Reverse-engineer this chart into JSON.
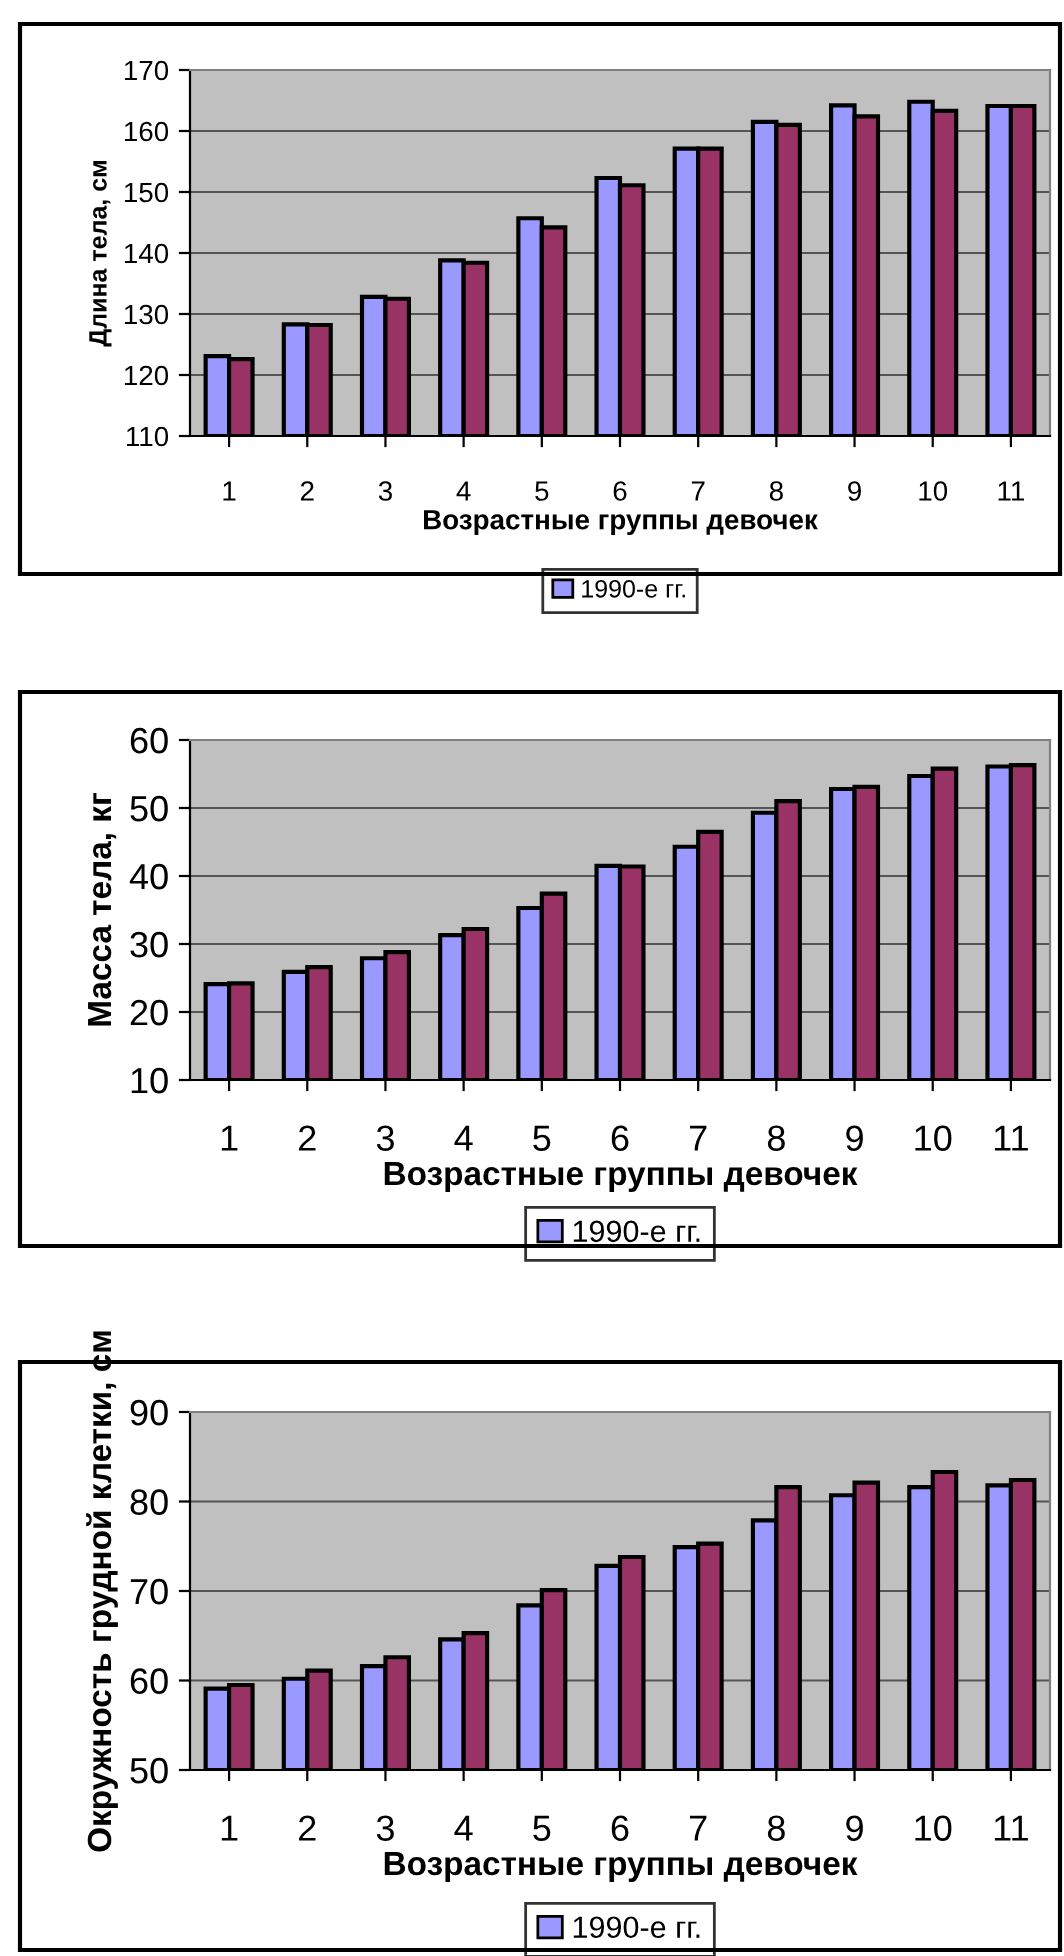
{
  "chart_data": [
    {
      "type": "bar",
      "xlabel": "Возрастные группы девочек",
      "ylabel": "Длина тела, см",
      "categories": [
        "1",
        "2",
        "3",
        "4",
        "5",
        "6",
        "7",
        "8",
        "9",
        "10",
        "11"
      ],
      "series": [
        {
          "name": "1990-е гг.",
          "color": "#9999ff",
          "values": [
            123.1,
            128.3,
            132.8,
            138.8,
            145.7,
            152.3,
            157.1,
            161.5,
            164.2,
            164.8,
            164.1
          ]
        },
        {
          "color": "#993366",
          "values": [
            122.6,
            128.2,
            132.5,
            138.4,
            144.2,
            151.1,
            157.1,
            161.0,
            162.4,
            163.3,
            164.1
          ]
        }
      ],
      "ylim": [
        110,
        170
      ],
      "yticks": [
        110,
        120,
        130,
        140,
        150,
        160,
        170
      ],
      "grid": "y",
      "legend": "bottom"
    },
    {
      "type": "bar",
      "xlabel": "Возрастные группы девочек",
      "ylabel": "Масса тела, кг",
      "categories": [
        "1",
        "2",
        "3",
        "4",
        "5",
        "6",
        "7",
        "8",
        "9",
        "10",
        "11"
      ],
      "series": [
        {
          "name": "1990-е гг.",
          "color": "#9999ff",
          "values": [
            24.1,
            25.9,
            27.9,
            31.3,
            35.3,
            41.5,
            44.3,
            49.3,
            52.8,
            54.7,
            56.1
          ]
        },
        {
          "color": "#993366",
          "values": [
            24.2,
            26.6,
            28.8,
            32.2,
            37.4,
            41.4,
            46.5,
            51.0,
            53.1,
            55.8,
            56.3
          ]
        }
      ],
      "ylim": [
        10,
        60
      ],
      "yticks": [
        10,
        20,
        30,
        40,
        50,
        60
      ],
      "grid": "y",
      "legend": "bottom"
    },
    {
      "type": "bar",
      "xlabel": "Возрастные группы девочек",
      "ylabel": "Окружность грудной клетки, см",
      "categories": [
        "1",
        "2",
        "3",
        "4",
        "5",
        "6",
        "7",
        "8",
        "9",
        "10",
        "11"
      ],
      "series": [
        {
          "name": "1990-е гг.",
          "color": "#9999ff",
          "values": [
            59.1,
            60.2,
            61.6,
            64.6,
            68.4,
            72.8,
            74.9,
            77.9,
            80.7,
            81.6,
            81.8
          ]
        },
        {
          "color": "#993366",
          "values": [
            59.5,
            61.1,
            62.6,
            65.3,
            70.1,
            73.8,
            75.3,
            81.6,
            82.1,
            83.3,
            82.4
          ]
        }
      ],
      "ylim": [
        50,
        90
      ],
      "yticks": [
        50,
        60,
        70,
        80,
        90
      ],
      "grid": "y",
      "legend": "bottom"
    }
  ]
}
